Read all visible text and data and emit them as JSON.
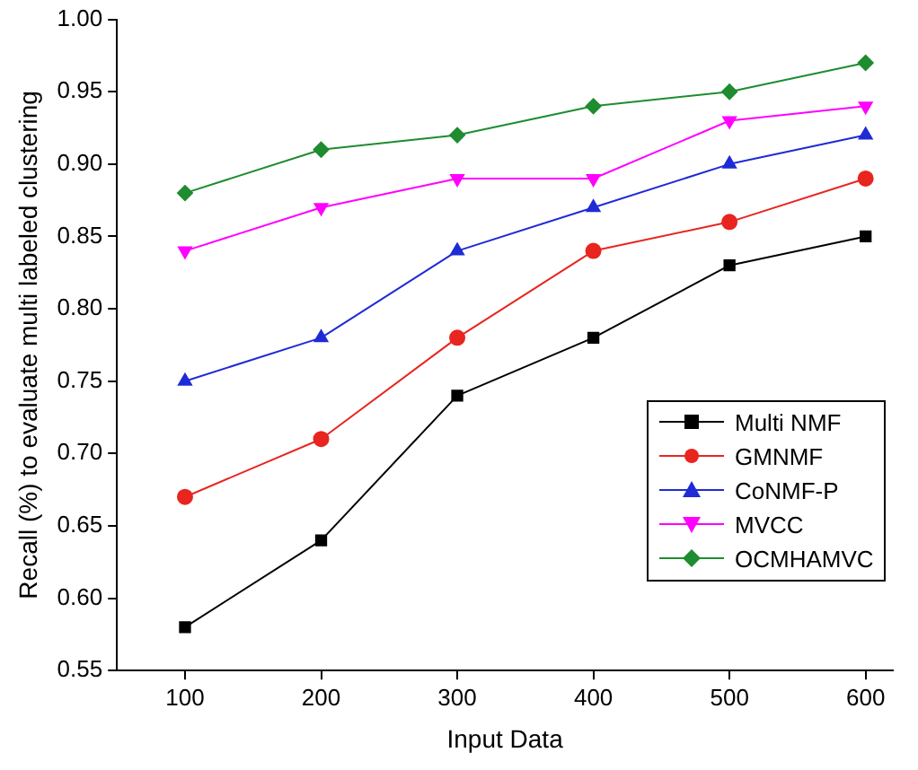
{
  "chart_data": {
    "type": "line",
    "xlabel": "Input Data",
    "ylabel": "Recall (%) to evaluate multi labeled clustering",
    "x": [
      100,
      200,
      300,
      400,
      500,
      600
    ],
    "xlim": [
      50,
      620
    ],
    "xticks": [
      100,
      200,
      300,
      400,
      500,
      600
    ],
    "ylim": [
      0.55,
      1.0
    ],
    "yticks": [
      {
        "value": 0.55,
        "label": "0.55"
      },
      {
        "value": 0.6,
        "label": "0.60"
      },
      {
        "value": 0.65,
        "label": "0.65"
      },
      {
        "value": 0.7,
        "label": "0.70"
      },
      {
        "value": 0.75,
        "label": "0.75"
      },
      {
        "value": 0.8,
        "label": "0.80"
      },
      {
        "value": 0.85,
        "label": "0.85"
      },
      {
        "value": 0.9,
        "label": "0.90"
      },
      {
        "value": 0.95,
        "label": "0.95"
      },
      {
        "value": 1.0,
        "label": "1.00"
      }
    ],
    "grid": false,
    "legend": "bottom right",
    "line_style": "solid",
    "series": [
      {
        "name": "Multi NMF",
        "color": "#000000",
        "marker": "square",
        "values": [
          0.58,
          0.64,
          0.74,
          0.78,
          0.83,
          0.85
        ]
      },
      {
        "name": "GMNMF",
        "color": "#e8251f",
        "marker": "circle",
        "values": [
          0.67,
          0.71,
          0.78,
          0.84,
          0.86,
          0.89
        ]
      },
      {
        "name": "CoNMF-P",
        "color": "#1f2bd6",
        "marker": "triangle",
        "values": [
          0.75,
          0.78,
          0.84,
          0.87,
          0.9,
          0.92
        ]
      },
      {
        "name": "MVCC",
        "color": "#ff00ff",
        "marker": "triangle-down",
        "values": [
          0.84,
          0.87,
          0.89,
          0.89,
          0.93,
          0.94
        ]
      },
      {
        "name": "OCMHAMVC",
        "color": "#1e8c2f",
        "marker": "diamond",
        "values": [
          0.88,
          0.91,
          0.92,
          0.94,
          0.95,
          0.97
        ]
      }
    ]
  }
}
